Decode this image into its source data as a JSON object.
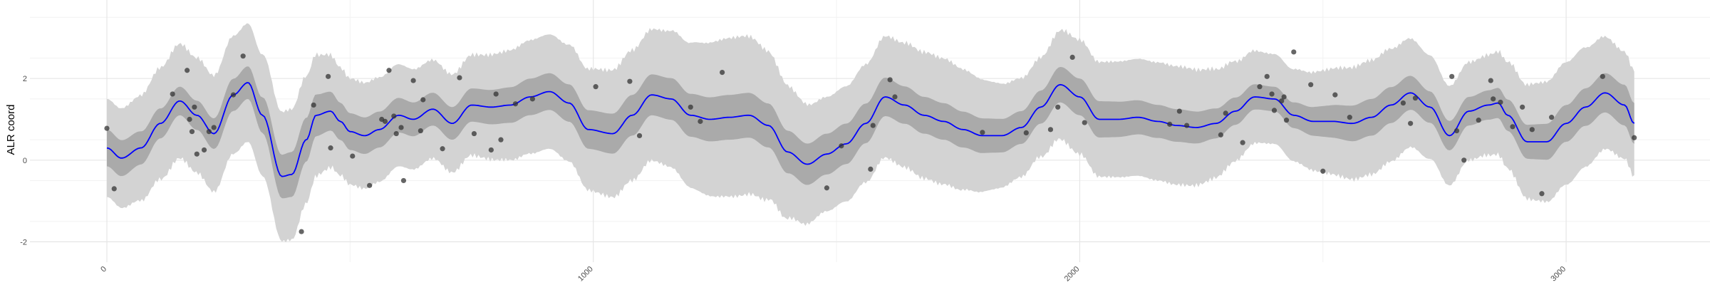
{
  "chart_data": {
    "type": "line",
    "title": "",
    "xlabel": "",
    "ylabel": "ALR coord",
    "xlim": [
      -160,
      3280
    ],
    "ylim": [
      -2.3,
      3.8
    ],
    "x_ticks": [
      0,
      1000,
      2000,
      3000
    ],
    "x_tick_labels": [
      "0",
      "1000",
      "2000",
      "3000"
    ],
    "y_ticks": [
      -2,
      0,
      2
    ],
    "y_tick_labels": [
      "-2",
      "0",
      "2"
    ],
    "grid": true,
    "legend": "none",
    "colors": {
      "line": "#0000ff",
      "inner_band": "#aaaaaa",
      "outer_band": "#d3d3d3",
      "points": "#333333",
      "grid_major": "#e6e6e6",
      "grid_minor": "#f2f2f2"
    },
    "series": [
      {
        "kind": "mean-line",
        "x": [
          0,
          30,
          70,
          110,
          150,
          185,
          220,
          260,
          290,
          320,
          360,
          380,
          410,
          430,
          460,
          480,
          500,
          530,
          560,
          600,
          630,
          670,
          710,
          750,
          790,
          830,
          870,
          910,
          950,
          990,
          1040,
          1080,
          1120,
          1160,
          1200,
          1240,
          1280,
          1320,
          1360,
          1400,
          1440,
          1480,
          1520,
          1560,
          1600,
          1640,
          1680,
          1720,
          1760,
          1800,
          1840,
          1880,
          1920,
          1960,
          2000,
          2040,
          2080,
          2120,
          2160,
          2200,
          2240,
          2280,
          2320,
          2360,
          2400,
          2440,
          2480,
          2520,
          2560,
          2600,
          2640,
          2680,
          2720,
          2760,
          2800,
          2840,
          2860,
          2880,
          2920,
          2960,
          3000,
          3040,
          3080,
          3120,
          3140
        ],
        "y": [
          0.3,
          0.05,
          0.3,
          0.9,
          1.45,
          1.1,
          0.65,
          1.6,
          1.9,
          1.1,
          -0.4,
          -0.35,
          0.5,
          1.1,
          1.2,
          0.95,
          0.7,
          0.6,
          0.75,
          1.1,
          1.0,
          1.25,
          0.9,
          1.35,
          1.3,
          1.35,
          1.55,
          1.68,
          1.4,
          0.75,
          0.65,
          1.1,
          1.6,
          1.5,
          1.1,
          1.0,
          1.05,
          1.1,
          0.85,
          0.2,
          -0.1,
          0.15,
          0.4,
          0.9,
          1.55,
          1.35,
          1.1,
          0.95,
          0.75,
          0.6,
          0.6,
          0.8,
          1.3,
          1.85,
          1.55,
          1.0,
          1.0,
          1.05,
          0.95,
          0.85,
          0.8,
          0.9,
          1.2,
          1.55,
          1.5,
          1.1,
          0.95,
          0.95,
          0.9,
          1.05,
          1.35,
          1.65,
          1.3,
          0.6,
          1.2,
          1.35,
          1.4,
          1.1,
          0.45,
          0.45,
          0.9,
          1.3,
          1.65,
          1.35,
          0.9
        ]
      },
      {
        "kind": "inner-band-halfwidth",
        "x": [
          0,
          150,
          290,
          380,
          500,
          700,
          900,
          1100,
          1300,
          1480,
          1700,
          1900,
          2000,
          2200,
          2400,
          2600,
          2800,
          3000,
          3140
        ],
        "halfwidth": [
          0.45,
          0.35,
          0.4,
          0.55,
          0.45,
          0.4,
          0.45,
          0.5,
          0.55,
          0.5,
          0.45,
          0.4,
          0.45,
          0.4,
          0.3,
          0.45,
          0.35,
          0.45,
          0.5
        ]
      },
      {
        "kind": "outer-band-halfwidth",
        "x": [
          0,
          150,
          290,
          380,
          500,
          700,
          900,
          1100,
          1300,
          1480,
          1700,
          1900,
          2000,
          2200,
          2400,
          2600,
          2800,
          3000,
          3140
        ],
        "halfwidth": [
          1.2,
          1.4,
          1.45,
          1.6,
          1.3,
          1.2,
          1.4,
          1.6,
          1.95,
          1.4,
          1.55,
          1.2,
          1.4,
          1.45,
          1.1,
          1.4,
          1.2,
          1.5,
          1.3
        ]
      },
      {
        "kind": "observations",
        "points": [
          [
            0,
            0.78
          ],
          [
            15,
            -0.7
          ],
          [
            135,
            1.62
          ],
          [
            165,
            2.2
          ],
          [
            170,
            1.0
          ],
          [
            175,
            0.7
          ],
          [
            180,
            1.3
          ],
          [
            185,
            0.15
          ],
          [
            200,
            0.25
          ],
          [
            210,
            0.7
          ],
          [
            220,
            0.8
          ],
          [
            260,
            1.6
          ],
          [
            280,
            2.55
          ],
          [
            400,
            -1.75
          ],
          [
            425,
            1.35
          ],
          [
            455,
            2.05
          ],
          [
            460,
            0.3
          ],
          [
            505,
            0.1
          ],
          [
            540,
            -0.62
          ],
          [
            565,
            1.0
          ],
          [
            572,
            0.95
          ],
          [
            580,
            2.2
          ],
          [
            590,
            1.08
          ],
          [
            595,
            0.65
          ],
          [
            605,
            0.8
          ],
          [
            610,
            -0.5
          ],
          [
            630,
            1.95
          ],
          [
            645,
            0.72
          ],
          [
            650,
            1.48
          ],
          [
            690,
            0.28
          ],
          [
            725,
            2.02
          ],
          [
            755,
            0.65
          ],
          [
            790,
            0.25
          ],
          [
            800,
            1.62
          ],
          [
            810,
            0.5
          ],
          [
            840,
            1.38
          ],
          [
            875,
            1.5
          ],
          [
            1005,
            1.8
          ],
          [
            1075,
            1.93
          ],
          [
            1095,
            0.6
          ],
          [
            1200,
            1.3
          ],
          [
            1220,
            0.95
          ],
          [
            1265,
            2.15
          ],
          [
            1480,
            -0.68
          ],
          [
            1510,
            0.35
          ],
          [
            1570,
            -0.22
          ],
          [
            1575,
            0.85
          ],
          [
            1610,
            1.97
          ],
          [
            1620,
            1.55
          ],
          [
            1800,
            0.68
          ],
          [
            1890,
            0.67
          ],
          [
            1940,
            0.75
          ],
          [
            1955,
            1.3
          ],
          [
            1985,
            2.52
          ],
          [
            2010,
            0.92
          ],
          [
            2185,
            0.88
          ],
          [
            2205,
            1.2
          ],
          [
            2220,
            0.85
          ],
          [
            2290,
            0.62
          ],
          [
            2300,
            1.15
          ],
          [
            2335,
            0.43
          ],
          [
            2370,
            1.8
          ],
          [
            2385,
            2.05
          ],
          [
            2395,
            1.62
          ],
          [
            2400,
            1.22
          ],
          [
            2415,
            1.45
          ],
          [
            2420,
            1.55
          ],
          [
            2425,
            0.98
          ],
          [
            2440,
            2.65
          ],
          [
            2475,
            1.85
          ],
          [
            2500,
            -0.27
          ],
          [
            2525,
            1.6
          ],
          [
            2555,
            1.05
          ],
          [
            2665,
            1.4
          ],
          [
            2680,
            0.9
          ],
          [
            2690,
            1.52
          ],
          [
            2765,
            2.05
          ],
          [
            2775,
            0.72
          ],
          [
            2790,
            0.0
          ],
          [
            2820,
            0.98
          ],
          [
            2845,
            1.95
          ],
          [
            2850,
            1.5
          ],
          [
            2865,
            1.42
          ],
          [
            2890,
            0.82
          ],
          [
            2910,
            1.3
          ],
          [
            2930,
            0.75
          ],
          [
            2950,
            -0.82
          ],
          [
            2970,
            1.05
          ],
          [
            3075,
            2.05
          ],
          [
            3140,
            0.55
          ]
        ]
      }
    ]
  }
}
